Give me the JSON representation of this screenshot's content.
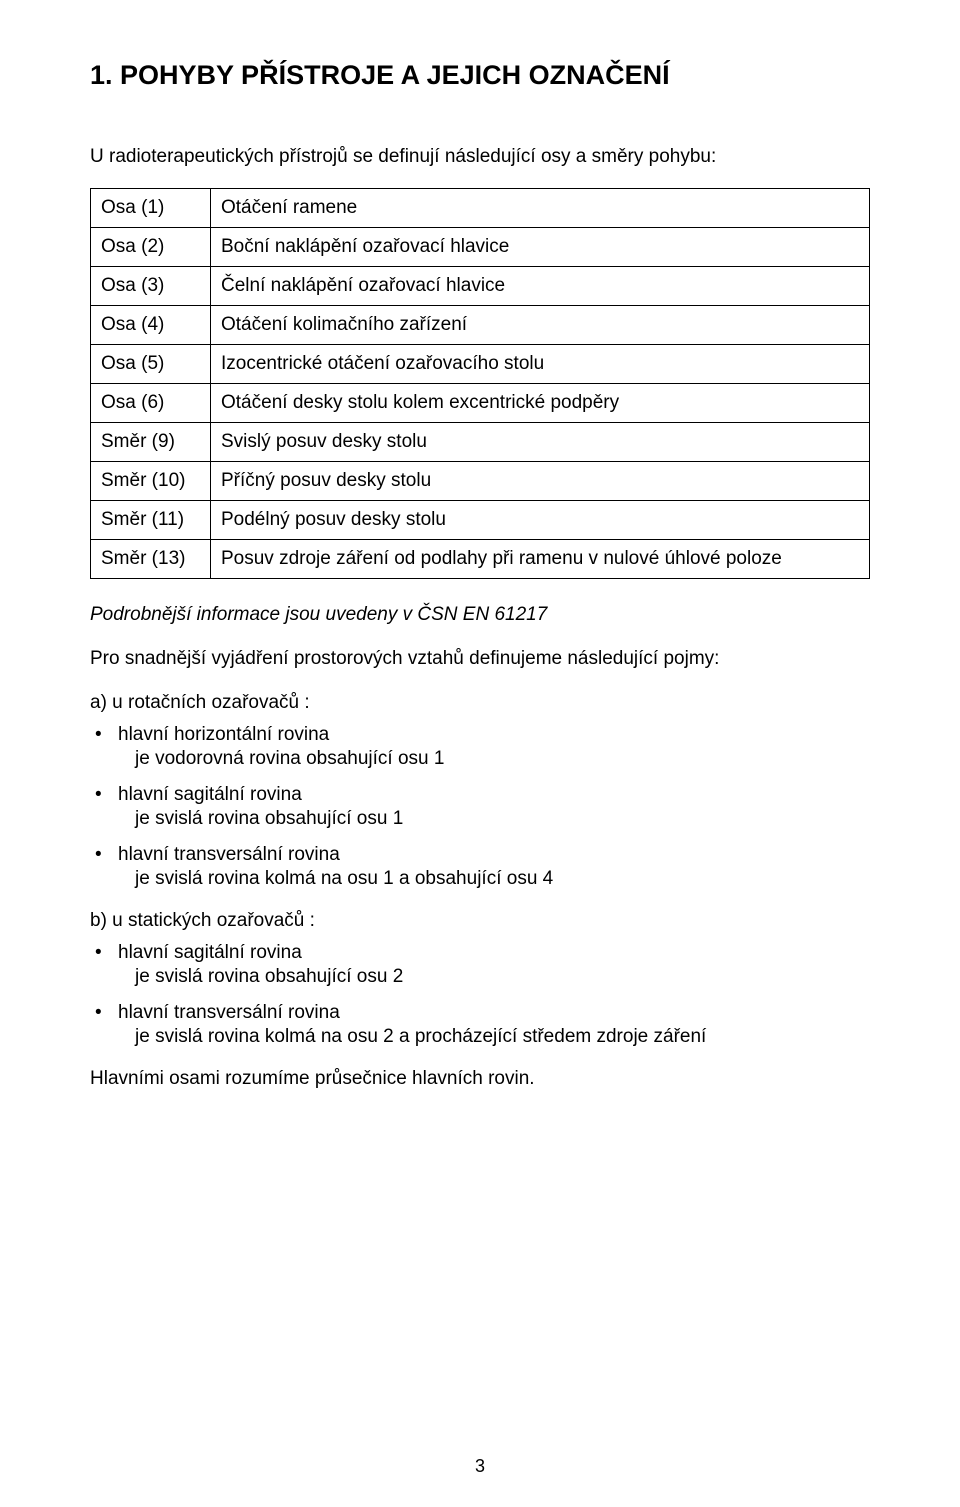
{
  "heading": "1. POHYBY PŘÍSTROJE A JEJICH OZNAČENÍ",
  "intro": "U radioterapeutických přístrojů se definují následující osy a směry pohybu:",
  "table": {
    "rows": [
      {
        "c1": "Osa (1)",
        "c2": "Otáčení ramene"
      },
      {
        "c1": "Osa (2)",
        "c2": "Boční naklápění ozařovací hlavice"
      },
      {
        "c1": "Osa (3)",
        "c2": "Čelní naklápění ozařovací hlavice"
      },
      {
        "c1": "Osa (4)",
        "c2": "Otáčení kolimačního zařízení"
      },
      {
        "c1": "Osa (5)",
        "c2": "Izocentrické otáčení ozařovacího stolu"
      },
      {
        "c1": "Osa (6)",
        "c2": "Otáčení desky stolu kolem excentrické podpěry"
      },
      {
        "c1": "Směr (9)",
        "c2": "Svislý posuv desky stolu"
      },
      {
        "c1": "Směr (10)",
        "c2": "Příčný posuv desky stolu"
      },
      {
        "c1": "Směr (11)",
        "c2": "Podélný posuv desky stolu"
      },
      {
        "c1": "Směr (13)",
        "c2": "Posuv zdroje záření od podlahy při ramenu v nulové úhlové poloze"
      }
    ]
  },
  "italicNote": "Podrobnější informace jsou uvedeny v ČSN EN 61217",
  "para1": "Pro snadnější vyjádření prostorových vztahů definujeme následující pojmy:",
  "sectionA": {
    "title": "a) u rotačních ozařovačů :",
    "items": [
      {
        "main": "hlavní horizontální rovina",
        "sub": "je vodorovná rovina obsahující osu 1"
      },
      {
        "main": "hlavní sagitální rovina",
        "sub": "je svislá rovina obsahující osu 1"
      },
      {
        "main": "hlavní transversální rovina",
        "sub": "je svislá rovina kolmá na osu 1 a obsahující osu 4"
      }
    ]
  },
  "sectionB": {
    "title": "b) u statických ozařovačů :",
    "items": [
      {
        "main": "hlavní sagitální rovina",
        "sub": "je svislá rovina obsahující osu 2"
      },
      {
        "main": "hlavní transversální rovina",
        "sub": "je svislá rovina kolmá na osu 2 a procházející středem zdroje záření"
      }
    ]
  },
  "closing": "Hlavními osami rozumíme průsečnice hlavních rovin.",
  "pageNumber": "3"
}
